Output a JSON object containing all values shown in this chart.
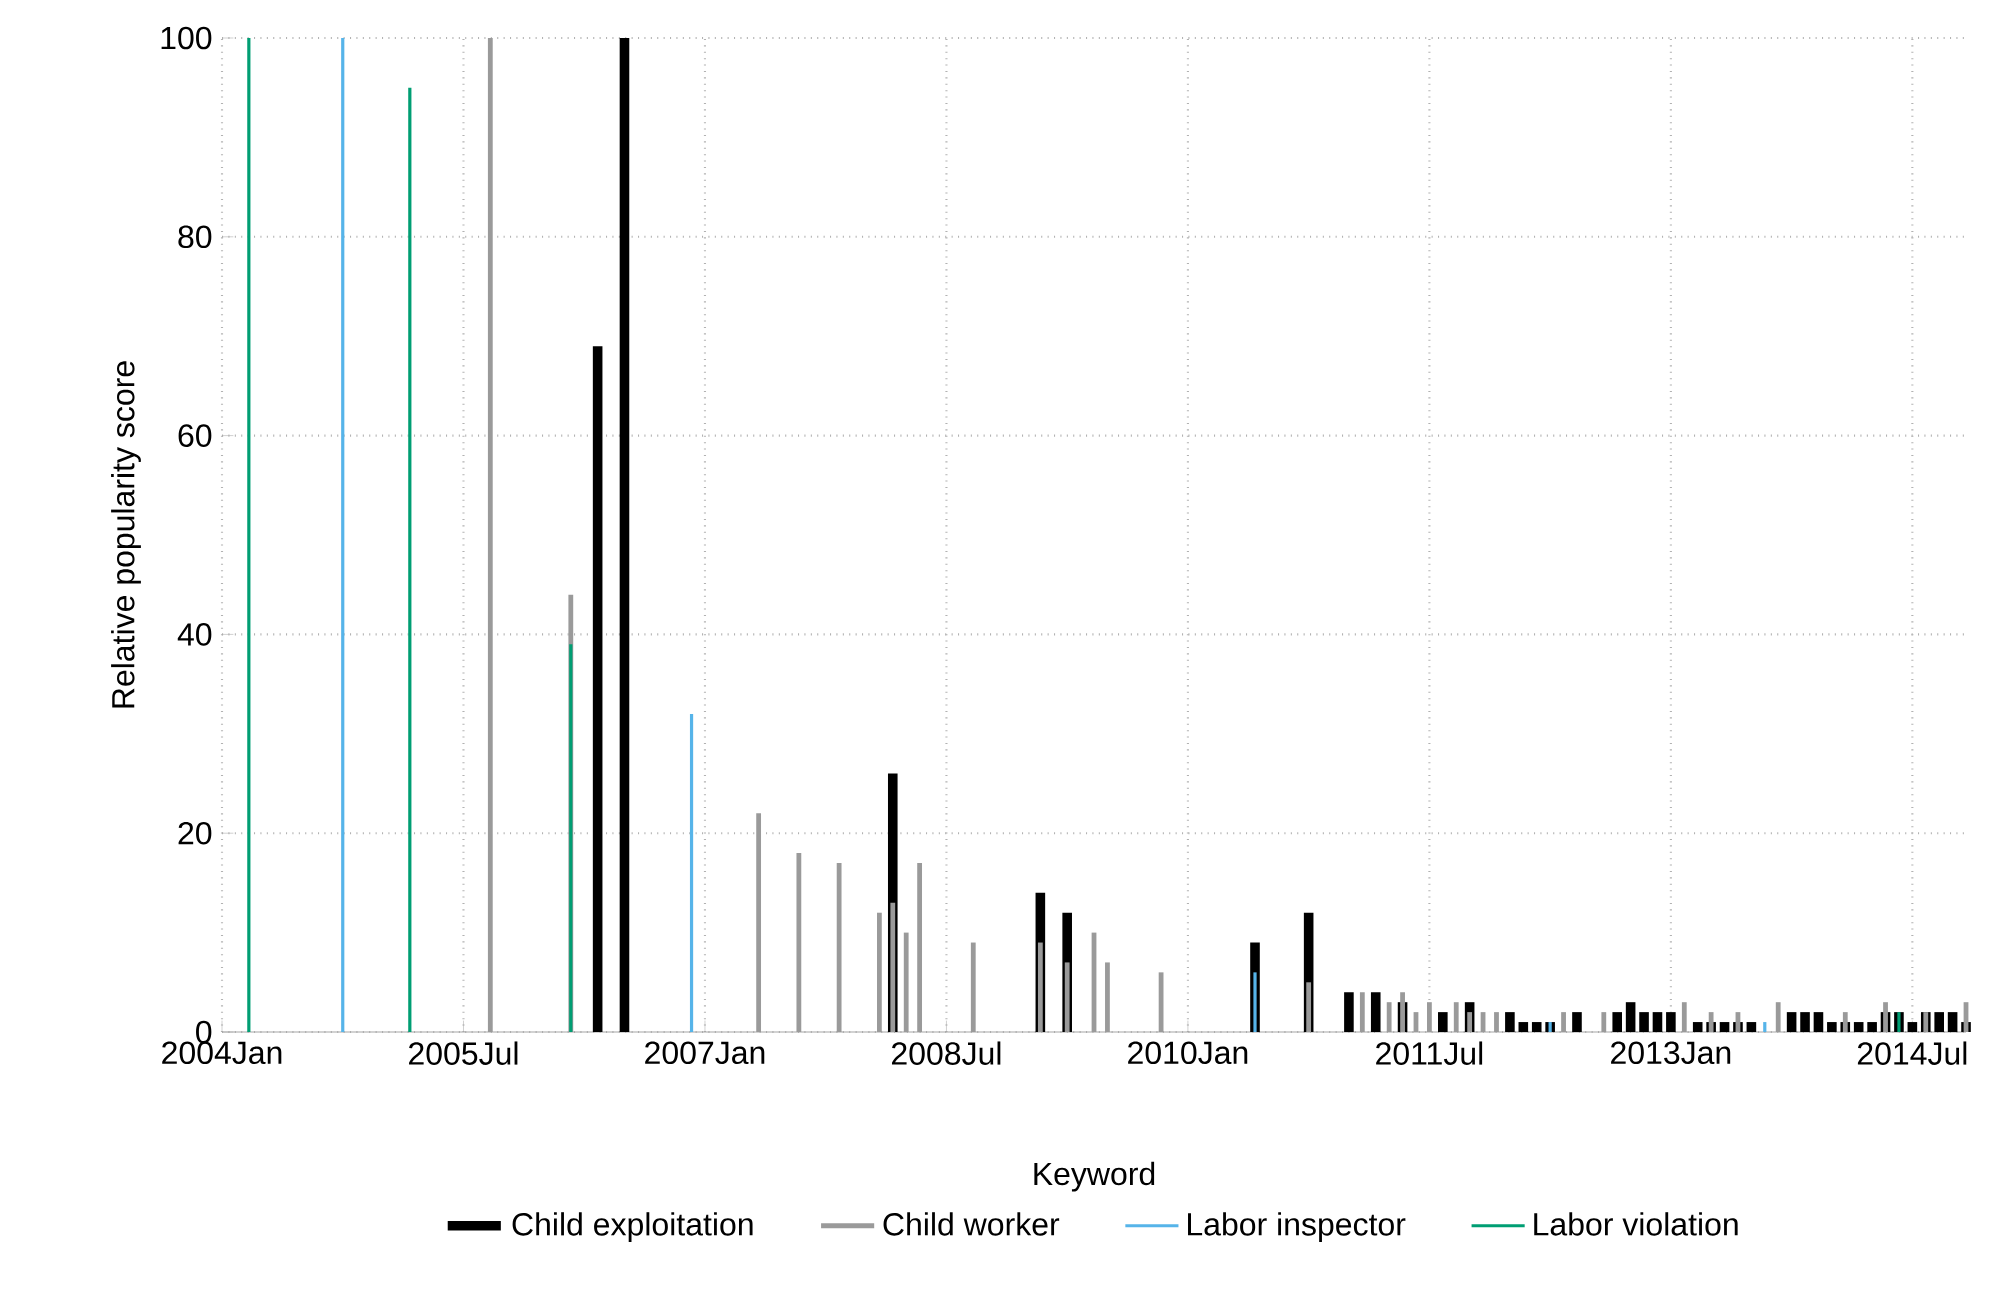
{
  "chart_data": {
    "type": "bar",
    "ylabel": "Relative popularity score",
    "legend_title": "Keyword",
    "xlim": [
      "2004-01",
      "2014-11"
    ],
    "ylim": [
      0,
      100
    ],
    "yticks": [
      0,
      20,
      40,
      60,
      80,
      100
    ],
    "xticks": [
      {
        "value": "2004-01",
        "label": "2004Jan"
      },
      {
        "value": "2005-07",
        "label": "2005Jul"
      },
      {
        "value": "2007-01",
        "label": "2007Jan"
      },
      {
        "value": "2008-07",
        "label": "2008Jul"
      },
      {
        "value": "2010-01",
        "label": "2010Jan"
      },
      {
        "value": "2011-07",
        "label": "2011Jul"
      },
      {
        "value": "2013-01",
        "label": "2013Jan"
      },
      {
        "value": "2014-07",
        "label": "2014Jul"
      }
    ],
    "grid": true,
    "legend": "bottom",
    "series": [
      {
        "name": "Child exploitation",
        "color": "#000000",
        "x": [
          "2006-05",
          "2006-07",
          "2008-03",
          "2009-02",
          "2009-04",
          "2010-06",
          "2010-10",
          "2011-01",
          "2011-03",
          "2011-05",
          "2011-08",
          "2011-10",
          "2012-01",
          "2012-02",
          "2012-03",
          "2012-04",
          "2012-06",
          "2012-09",
          "2012-10",
          "2012-11",
          "2012-12",
          "2013-01",
          "2013-03",
          "2013-04",
          "2013-05",
          "2013-06",
          "2013-07",
          "2013-10",
          "2013-11",
          "2013-12",
          "2014-01",
          "2014-02",
          "2014-03",
          "2014-04",
          "2014-05",
          "2014-06",
          "2014-07",
          "2014-08",
          "2014-09",
          "2014-10",
          "2014-11"
        ],
        "values": [
          69,
          100,
          26,
          14,
          12,
          9,
          12,
          4,
          4,
          3,
          2,
          3,
          2,
          1,
          1,
          1,
          2,
          2,
          3,
          2,
          2,
          2,
          1,
          1,
          1,
          1,
          1,
          2,
          2,
          2,
          1,
          1,
          1,
          1,
          2,
          2,
          1,
          2,
          2,
          2,
          1
        ]
      },
      {
        "name": "Child worker",
        "color": "#9a9a9a",
        "x": [
          "2005-09",
          "2006-03",
          "2007-05",
          "2007-08",
          "2007-11",
          "2008-02",
          "2008-03",
          "2008-04",
          "2008-05",
          "2008-09",
          "2009-02",
          "2009-04",
          "2009-06",
          "2009-07",
          "2009-11",
          "2010-10",
          "2011-02",
          "2011-04",
          "2011-05",
          "2011-06",
          "2011-07",
          "2011-09",
          "2011-10",
          "2011-11",
          "2011-12",
          "2012-05",
          "2012-08",
          "2013-02",
          "2013-04",
          "2013-06",
          "2013-09",
          "2014-02",
          "2014-05",
          "2014-08",
          "2014-11"
        ],
        "values": [
          100,
          44,
          22,
          18,
          17,
          12,
          13,
          10,
          17,
          9,
          9,
          7,
          10,
          7,
          6,
          5,
          4,
          3,
          4,
          2,
          3,
          3,
          2,
          2,
          2,
          2,
          2,
          3,
          2,
          2,
          3,
          2,
          3,
          2,
          3
        ]
      },
      {
        "name": "Labor inspector",
        "color": "#56b4e9",
        "x": [
          "2004-10",
          "2006-12",
          "2010-06",
          "2012-04",
          "2013-08"
        ],
        "values": [
          100,
          32,
          6,
          1,
          1
        ]
      },
      {
        "name": "Labor violation",
        "color": "#009e73",
        "x": [
          "2004-03",
          "2005-03",
          "2006-03",
          "2014-06"
        ],
        "values": [
          100,
          95,
          39,
          2
        ]
      }
    ]
  }
}
